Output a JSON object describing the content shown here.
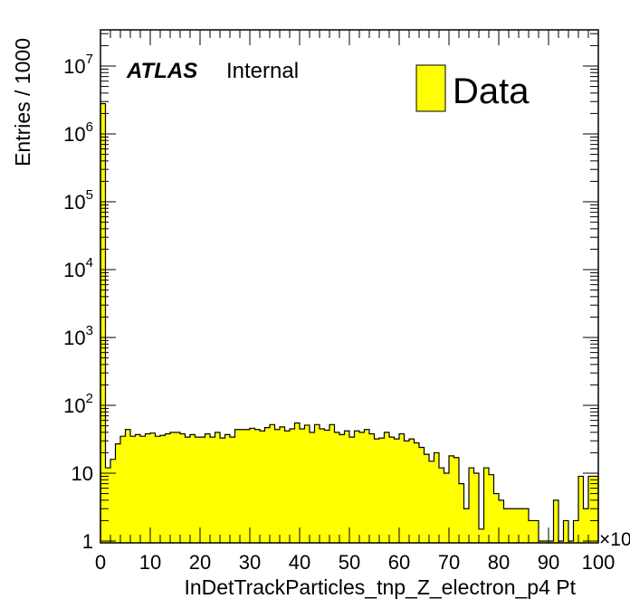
{
  "chart_data": {
    "type": "bar",
    "style": "histogram",
    "xlabel": "InDetTrackParticles_tnp_Z_electron_p4 Pt",
    "ylabel": "Entries / 1000",
    "x_exponent_label": "×10",
    "xlim": [
      0,
      100
    ],
    "ylim": [
      1,
      40000000
    ],
    "y_scale": "log",
    "x_ticks": [
      "0",
      "10",
      "20",
      "30",
      "40",
      "50",
      "60",
      "70",
      "80",
      "90",
      "100"
    ],
    "y_ticks": [
      {
        "base": "1",
        "exp": ""
      },
      {
        "base": "10",
        "exp": ""
      },
      {
        "base": "10",
        "exp": "2"
      },
      {
        "base": "10",
        "exp": "3"
      },
      {
        "base": "10",
        "exp": "4"
      },
      {
        "base": "10",
        "exp": "5"
      },
      {
        "base": "10",
        "exp": "6"
      },
      {
        "base": "10",
        "exp": "7"
      }
    ],
    "bin_width": 1,
    "values": [
      2800000,
      12,
      16,
      27,
      35,
      44,
      35,
      37,
      35,
      38,
      39,
      35,
      36,
      38,
      40,
      40,
      38,
      34,
      37,
      34,
      34,
      38,
      34,
      40,
      33,
      37,
      34,
      44,
      44,
      44,
      46,
      44,
      42,
      47,
      52,
      44,
      48,
      42,
      45,
      55,
      45,
      51,
      40,
      52,
      45,
      43,
      52,
      40,
      37,
      42,
      34,
      42,
      40,
      44,
      38,
      32,
      33,
      40,
      34,
      32,
      38,
      30,
      32,
      28,
      24,
      19,
      15,
      20,
      12,
      10,
      18,
      17,
      7,
      3,
      12,
      10,
      1.5,
      12,
      9.5,
      5,
      4,
      3,
      3,
      3,
      3,
      3,
      2,
      2,
      1,
      1,
      1,
      4,
      1,
      2,
      1,
      2,
      9,
      3,
      9,
      9
    ],
    "legend": {
      "label": "Data",
      "color": "#ffff00",
      "position": "top-right"
    },
    "annotations": {
      "atlas": "ATLAS",
      "status": "Internal"
    },
    "colors": {
      "fill": "#ffff00",
      "line": "#000000"
    }
  }
}
